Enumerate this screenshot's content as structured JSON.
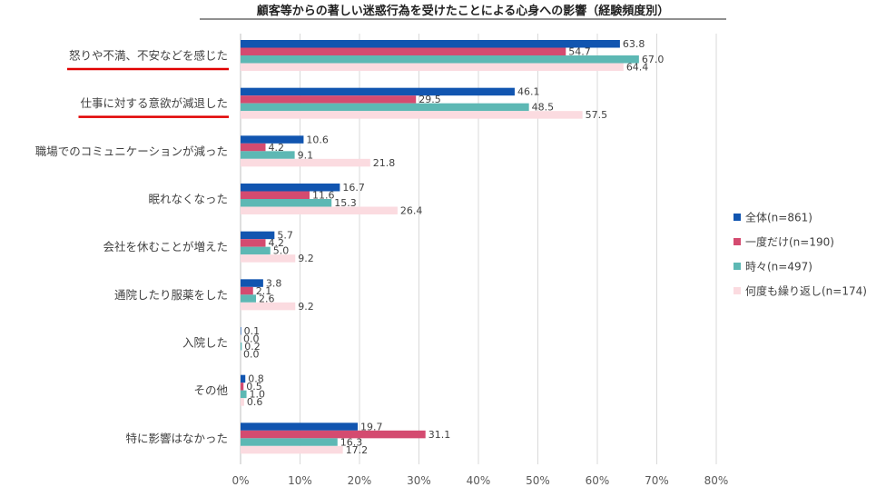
{
  "chart_data": {
    "type": "bar",
    "orientation": "horizontal",
    "title": "顧客等からの著しい迷惑行為を受けたことによる心身への影響（経験頻度別）",
    "categories": [
      "怒りや不満、不安などを感じた",
      "仕事に対する意欲が減退した",
      "職場でのコミュニケーションが減った",
      "眠れなくなった",
      "会社を休むことが増えた",
      "通院したり服薬をした",
      "入院した",
      "その他",
      "特に影響はなかった"
    ],
    "highlighted_categories": [
      "怒りや不満、不安などを感じた",
      "仕事に対する意欲が減退した"
    ],
    "series": [
      {
        "name": "全体(n=861)",
        "color": "#1155b0",
        "values": [
          63.8,
          46.1,
          10.6,
          16.7,
          5.7,
          3.8,
          0.1,
          0.8,
          19.7
        ],
        "labels": [
          "63.8",
          "46.1",
          "10.6",
          "16.7",
          "5.7",
          "3.8",
          "0.1",
          "0.8",
          "19.7"
        ]
      },
      {
        "name": "一度だけ(n=190)",
        "color": "#d44b70",
        "values": [
          54.7,
          29.5,
          4.2,
          11.6,
          4.2,
          2.1,
          0.0,
          0.5,
          31.1
        ],
        "labels": [
          "54.7",
          "29.5",
          "4.2",
          "11.6",
          "4.2",
          "2.1",
          "0.0",
          "0.5",
          "31.1"
        ]
      },
      {
        "name": "時々(n=497)",
        "color": "#5db8b4",
        "values": [
          67.0,
          48.5,
          9.1,
          15.3,
          5.0,
          2.6,
          0.2,
          1.0,
          16.3
        ],
        "labels": [
          "67.0",
          "48.5",
          "9.1",
          "15.3",
          "5.0",
          "2.6",
          "0.2",
          "1.0",
          "16.3"
        ]
      },
      {
        "name": "何度も繰り返し(n=174)",
        "color": "#fbdbe0",
        "values": [
          64.4,
          57.5,
          21.8,
          26.4,
          9.2,
          9.2,
          0.0,
          0.6,
          17.2
        ],
        "labels": [
          "64.4",
          "57.5",
          "21.8",
          "26.4",
          "9.2",
          "9.2",
          "0.0",
          "0.6",
          "17.2"
        ]
      }
    ],
    "xlim": [
      0,
      80
    ],
    "xticks": [
      "0%",
      "10%",
      "20%",
      "30%",
      "40%",
      "50%",
      "60%",
      "70%",
      "80%"
    ],
    "grid": true,
    "legend_position": "right",
    "highlight_color": "#e00000"
  }
}
